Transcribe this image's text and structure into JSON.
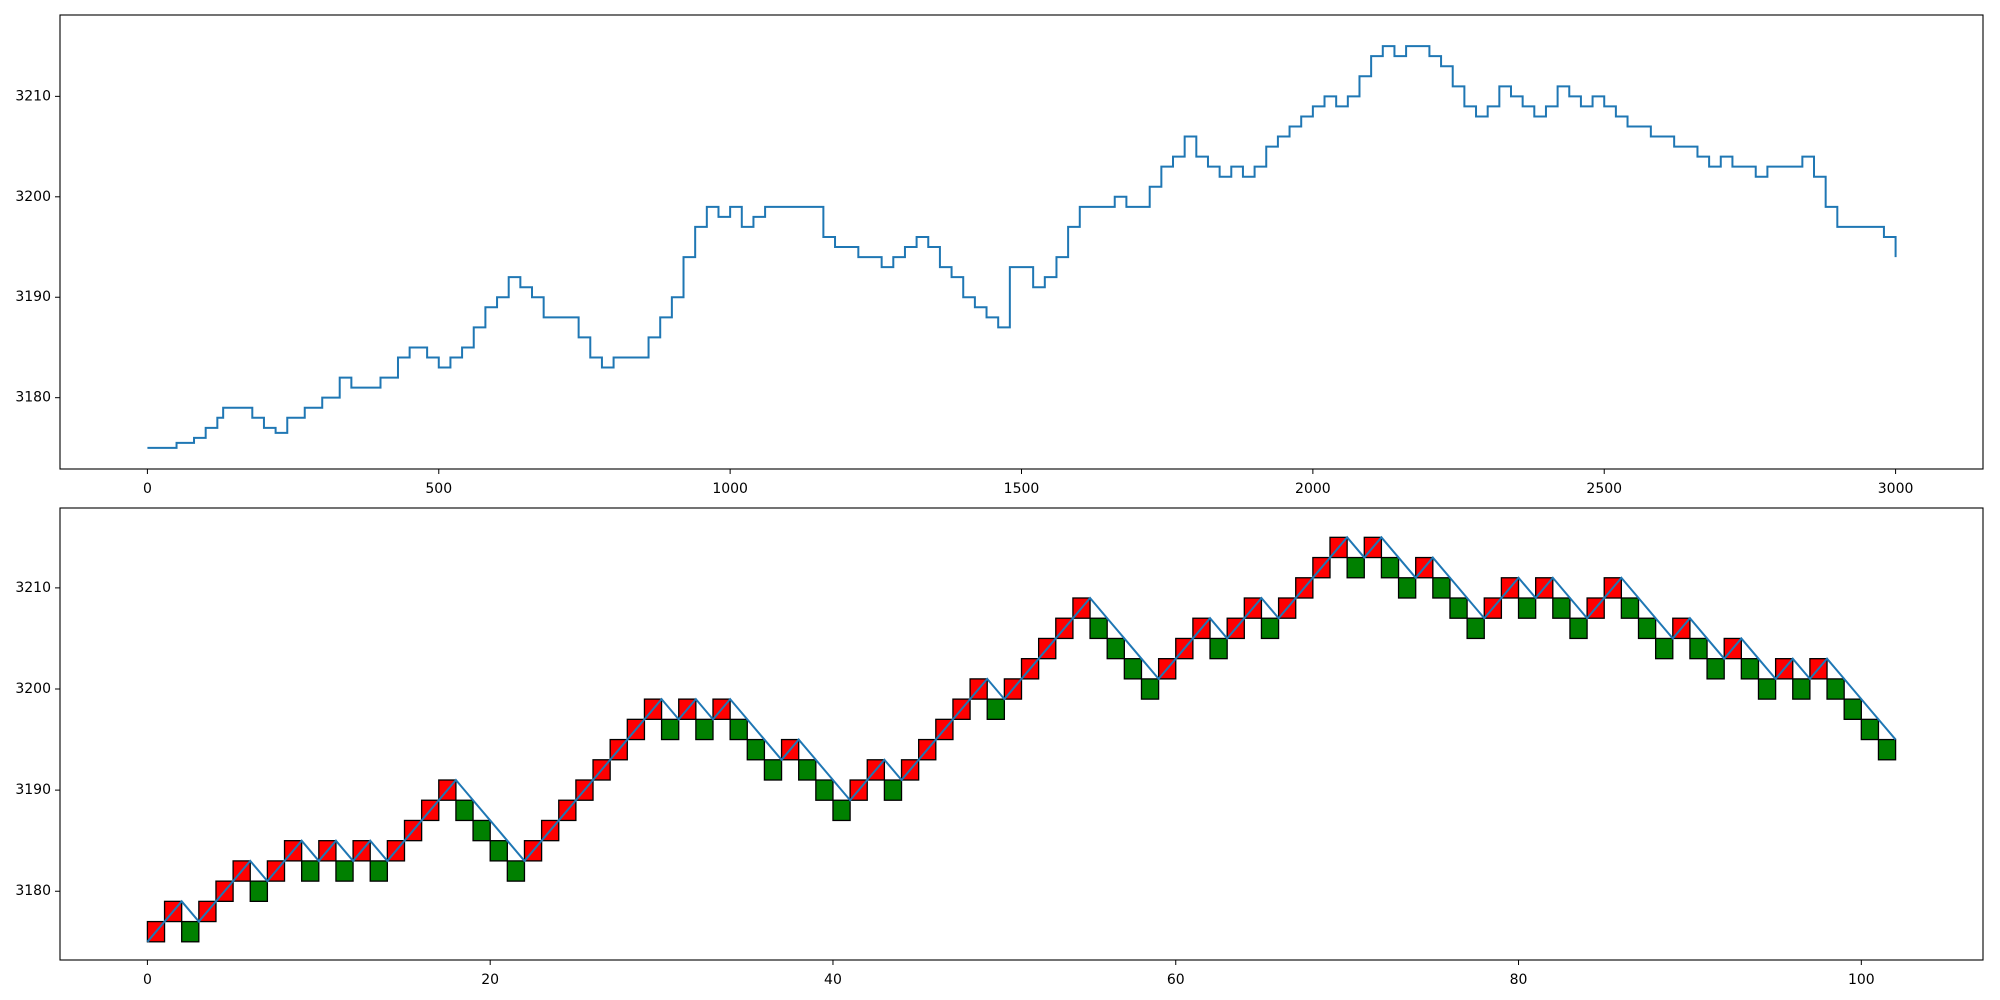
{
  "chart_data": [
    {
      "type": "line",
      "drawstyle": "steps-post",
      "color": "#1f77b4",
      "x": [
        0,
        50,
        80,
        100,
        120,
        130,
        170,
        180,
        200,
        220,
        240,
        270,
        300,
        330,
        350,
        380,
        400,
        430,
        450,
        480,
        500,
        520,
        540,
        560,
        580,
        600,
        620,
        640,
        660,
        680,
        700,
        720,
        740,
        760,
        780,
        800,
        820,
        840,
        860,
        880,
        900,
        920,
        940,
        960,
        980,
        1000,
        1020,
        1040,
        1060,
        1080,
        1100,
        1120,
        1140,
        1160,
        1180,
        1200,
        1220,
        1240,
        1260,
        1280,
        1300,
        1320,
        1340,
        1360,
        1380,
        1400,
        1420,
        1440,
        1460,
        1480,
        1500,
        1520,
        1540,
        1560,
        1580,
        1600,
        1620,
        1640,
        1660,
        1680,
        1700,
        1720,
        1740,
        1760,
        1780,
        1800,
        1820,
        1840,
        1860,
        1880,
        1900,
        1920,
        1940,
        1960,
        1980,
        2000,
        2020,
        2040,
        2060,
        2080,
        2100,
        2120,
        2140,
        2160,
        2180,
        2200,
        2220,
        2240,
        2260,
        2280,
        2300,
        2320,
        2340,
        2360,
        2380,
        2400,
        2420,
        2440,
        2460,
        2480,
        2500,
        2520,
        2540,
        2560,
        2580,
        2600,
        2620,
        2640,
        2660,
        2680,
        2700,
        2720,
        2740,
        2760,
        2780,
        2800,
        2820,
        2840,
        2860,
        2880,
        2900,
        2920,
        2940,
        2960,
        2980,
        3000
      ],
      "values": [
        3175,
        3175.5,
        3176,
        3177,
        3178,
        3179,
        3179,
        3178,
        3177,
        3176.5,
        3178,
        3179,
        3180,
        3182,
        3181,
        3181,
        3182,
        3184,
        3185,
        3184,
        3183,
        3184,
        3185,
        3187,
        3189,
        3190,
        3192,
        3191,
        3190,
        3188,
        3188,
        3188,
        3186,
        3184,
        3183,
        3184,
        3184,
        3184,
        3186,
        3188,
        3190,
        3194,
        3197,
        3199,
        3198,
        3199,
        3197,
        3198,
        3199,
        3199,
        3199,
        3199,
        3199,
        3196,
        3195,
        3195,
        3194,
        3194,
        3193,
        3194,
        3195,
        3196,
        3195,
        3193,
        3192,
        3190,
        3189,
        3188,
        3187,
        3193,
        3193,
        3191,
        3192,
        3194,
        3197,
        3199,
        3199,
        3199,
        3200,
        3199,
        3199,
        3201,
        3203,
        3204,
        3206,
        3204,
        3203,
        3202,
        3203,
        3202,
        3203,
        3205,
        3206,
        3207,
        3208,
        3209,
        3210,
        3209,
        3210,
        3212,
        3214,
        3215,
        3214,
        3215,
        3215,
        3214,
        3213,
        3211,
        3209,
        3208,
        3209,
        3211,
        3210,
        3209,
        3208,
        3209,
        3211,
        3210,
        3209,
        3210,
        3209,
        3208,
        3207,
        3207,
        3206,
        3206,
        3205,
        3205,
        3204,
        3203,
        3204,
        3203,
        3203,
        3202,
        3203,
        3203,
        3203,
        3204,
        3202,
        3199,
        3197,
        3197,
        3197,
        3197,
        3196,
        3194
      ],
      "xlim": [
        -150,
        3150
      ],
      "ylim": [
        3172.9,
        3218.1
      ],
      "xticks": [
        0,
        500,
        1000,
        1500,
        2000,
        2500,
        3000
      ],
      "yticks": [
        3180,
        3190,
        3200,
        3210
      ]
    },
    {
      "type": "renko",
      "up_color": "#ff0000",
      "down_color": "#008000",
      "edge_color": "#000000",
      "open": [
        3175,
        3177,
        3177,
        3177,
        3179,
        3181,
        3181,
        3181,
        3183,
        3183,
        3183,
        3183,
        3183,
        3183,
        3183,
        3185,
        3187,
        3189,
        3189,
        3187,
        3185,
        3183,
        3183,
        3185,
        3187,
        3189,
        3191,
        3193,
        3195,
        3197,
        3197,
        3197,
        3197,
        3197,
        3197,
        3195,
        3193,
        3193,
        3193,
        3191,
        3189,
        3189,
        3191,
        3191,
        3191,
        3193,
        3195,
        3197,
        3199,
        3199,
        3199,
        3201,
        3203,
        3205,
        3207,
        3207,
        3205,
        3203,
        3201,
        3201,
        3203,
        3205,
        3205,
        3205,
        3207,
        3207,
        3207,
        3209,
        3211,
        3213,
        3213,
        3213,
        3213,
        3211,
        3211,
        3211,
        3209,
        3207,
        3207,
        3209,
        3209,
        3209,
        3209,
        3207,
        3207,
        3209,
        3209,
        3207,
        3205,
        3205,
        3205,
        3203,
        3203,
        3203,
        3201,
        3201,
        3201,
        3201,
        3201,
        3199,
        3197,
        3195
      ],
      "close": [
        3177,
        3179,
        3175,
        3179,
        3181,
        3183,
        3179,
        3183,
        3185,
        3181,
        3185,
        3181,
        3185,
        3181,
        3185,
        3187,
        3189,
        3191,
        3187,
        3185,
        3183,
        3181,
        3185,
        3187,
        3189,
        3191,
        3193,
        3195,
        3197,
        3199,
        3195,
        3199,
        3195,
        3199,
        3195,
        3193,
        3191,
        3195,
        3191,
        3189,
        3187,
        3191,
        3193,
        3189,
        3193,
        3195,
        3197,
        3199,
        3201,
        3197,
        3201,
        3203,
        3205,
        3207,
        3209,
        3205,
        3203,
        3201,
        3199,
        3203,
        3205,
        3207,
        3203,
        3207,
        3209,
        3205,
        3209,
        3211,
        3213,
        3215,
        3211,
        3215,
        3211,
        3209,
        3213,
        3209,
        3207,
        3205,
        3209,
        3211,
        3207,
        3211,
        3207,
        3205,
        3209,
        3211,
        3207,
        3205,
        3203,
        3207,
        3203,
        3201,
        3205,
        3201,
        3199,
        3203,
        3199,
        3203,
        3199,
        3197,
        3195,
        3193
      ],
      "line": {
        "color": "#1f77b4",
        "x": [
          0,
          1,
          2,
          3,
          4,
          5,
          6,
          7,
          8,
          9,
          10,
          11,
          12,
          13,
          14,
          15,
          16,
          17,
          18,
          19,
          20,
          21,
          22,
          23,
          24,
          25,
          26,
          27,
          28,
          29,
          30,
          31,
          32,
          33,
          34,
          35,
          36,
          37,
          38,
          39,
          40,
          41,
          42,
          43,
          44,
          45,
          46,
          47,
          48,
          49,
          50,
          51,
          52,
          53,
          54,
          55,
          56,
          57,
          58,
          59,
          60,
          61,
          62,
          63,
          64,
          65,
          66,
          67,
          68,
          69,
          70,
          71,
          72,
          73,
          74,
          75,
          76,
          77,
          78,
          79,
          80,
          81,
          82,
          83,
          84,
          85,
          86,
          87,
          88,
          89,
          90,
          91,
          92,
          93,
          94,
          95,
          96,
          97,
          98,
          99,
          100,
          101,
          102
        ],
        "values": [
          3175,
          3177,
          3179,
          3177,
          3179,
          3181,
          3183,
          3181,
          3183,
          3185,
          3183,
          3185,
          3183,
          3185,
          3183,
          3185,
          3187,
          3189,
          3191,
          3189,
          3187,
          3185,
          3183,
          3185,
          3187,
          3189,
          3191,
          3193,
          3195,
          3197,
          3199,
          3197,
          3199,
          3197,
          3199,
          3197,
          3195,
          3193,
          3195,
          3193,
          3191,
          3189,
          3191,
          3193,
          3191,
          3193,
          3195,
          3197,
          3199,
          3201,
          3199,
          3201,
          3203,
          3205,
          3207,
          3209,
          3207,
          3205,
          3203,
          3201,
          3203,
          3205,
          3207,
          3205,
          3207,
          3209,
          3207,
          3209,
          3211,
          3213,
          3215,
          3213,
          3215,
          3213,
          3211,
          3213,
          3211,
          3209,
          3207,
          3209,
          3211,
          3209,
          3211,
          3209,
          3207,
          3209,
          3211,
          3209,
          3207,
          3205,
          3207,
          3205,
          3203,
          3205,
          3203,
          3201,
          3203,
          3201,
          3203,
          3201,
          3199,
          3197,
          3195
        ]
      },
      "xlim": [
        -5.1,
        107.1
      ],
      "ylim": [
        3173.2,
        3217.9
      ],
      "xticks": [
        0,
        20,
        40,
        60,
        80,
        100
      ],
      "yticks": [
        3180,
        3190,
        3200,
        3210
      ]
    }
  ]
}
